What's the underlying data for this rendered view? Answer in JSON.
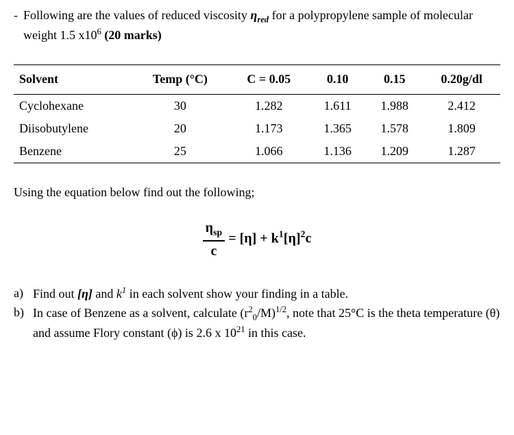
{
  "intro": {
    "bullet": "-",
    "text_pre": "Following are the values of reduced viscosity ",
    "eta_symbol": "η",
    "eta_sub": "red",
    "text_mid": " for a polypropylene sample of molecular weight 1.5 x10",
    "exp": "6",
    "marks": " (20 marks)"
  },
  "table": {
    "headers": [
      "Solvent",
      "Temp (°C)",
      "C = 0.05",
      "0.10",
      "0.15",
      "0.20g/dl"
    ],
    "rows": [
      [
        "Cyclohexane",
        "30",
        "1.282",
        "1.611",
        "1.988",
        "2.412"
      ],
      [
        "Diisobutylene",
        "20",
        "1.173",
        "1.365",
        "1.578",
        "1.809"
      ],
      [
        "Benzene",
        "25",
        "1.066",
        "1.136",
        "1.209",
        "1.287"
      ]
    ]
  },
  "using": "Using the equation below find out the following;",
  "equation": {
    "frac_num1": "η",
    "frac_num_sub": "sp",
    "frac_den": "c",
    "eq": " = [η] + k",
    "sup1": "1",
    "mid": "[η]",
    "sup2": "2",
    "end": "c"
  },
  "questions": {
    "a": {
      "label": "a)",
      "pre": "Find out ",
      "eta": "[η]",
      "mid1": " and ",
      "k": "k",
      "ksup": "1",
      "post": " in each solvent show your finding in a table."
    },
    "b": {
      "label": "b)",
      "pre": "In case of Benzene as a solvent, calculate (r",
      "sub1": "0",
      "sup1_pre": "2",
      "mid1": "/M)",
      "sup2": "1/2",
      "mid2": ", note that 25°C is the theta temperature (θ) and assume Flory constant (ϕ) is 2.6 x 10",
      "sup3": "21",
      "post": " in this case."
    }
  }
}
